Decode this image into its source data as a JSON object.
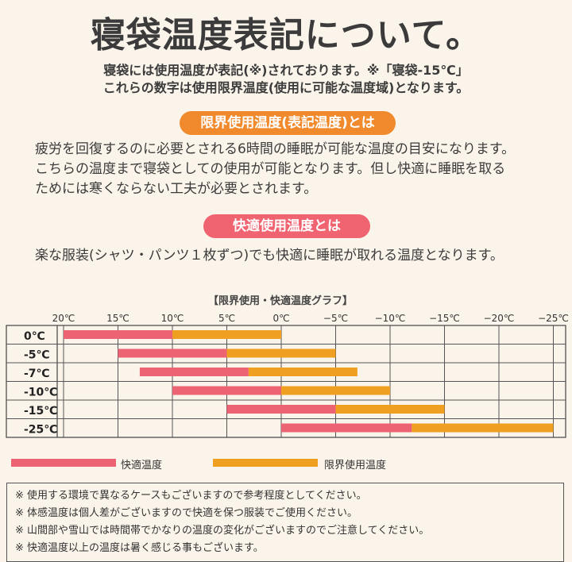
{
  "title": "寝袋温度表記について。",
  "intro": {
    "line1": "寝袋には使用温度が表記(※)されております。※「寝袋-15℃」",
    "line2": "これらの数字は使用限界温度(使用に可能な温度域)となります。"
  },
  "limit_section": {
    "heading": "限界使用温度(表記温度)とは",
    "body": [
      "疲労を回復するのに必要とされる6時間の睡眠が可能な温度の目安になります。",
      "こちらの温度まで寝袋としての使用が可能となります。但し快適に睡眠を取る",
      "ためには寒くならない工夫が必要とされます。"
    ]
  },
  "comfort_section": {
    "heading": "快適使用温度とは",
    "body": "楽な服装(シャツ・パンツ１枚ずつ)でも快適に睡眠が取れる温度となります。"
  },
  "chart_data": {
    "type": "bar",
    "orientation": "horizontal-range",
    "title": "【限界使用・快適温度グラフ】",
    "x_ticks": [
      "20℃",
      "15℃",
      "10℃",
      "5℃",
      "0℃",
      "−5℃",
      "−10℃",
      "−15℃",
      "−20℃",
      "−25℃"
    ],
    "xlim": [
      22,
      -25
    ],
    "categories": [
      "0℃",
      "-5℃",
      "-7℃",
      "-10℃",
      "-15℃",
      "-25℃"
    ],
    "series": [
      {
        "name": "快適温度",
        "color": "#ec6373",
        "ranges": [
          [
            20,
            10
          ],
          [
            15,
            5
          ],
          [
            13,
            3
          ],
          [
            10,
            0
          ],
          [
            5,
            -5
          ],
          [
            0,
            -12
          ]
        ]
      },
      {
        "name": "限界使用温度",
        "color": "#f0a020",
        "ranges": [
          [
            10,
            0
          ],
          [
            5,
            -5
          ],
          [
            3,
            -7
          ],
          [
            0,
            -10
          ],
          [
            -5,
            -15
          ],
          [
            -12,
            -25
          ]
        ]
      }
    ],
    "grid": true,
    "legend_position": "bottom"
  },
  "notes": [
    "※ 使用する環境で異なるケースもございますので参考程度としてください。",
    "※ 体感温度は個人差がございますので快適を保つ服装でご使用ください。",
    "※ 山間部や雪山では時間帯でかなりの温度の変化がございますのでご注意してください。",
    "※ 快適温度以上の温度は暑く感じる事もございます。"
  ]
}
